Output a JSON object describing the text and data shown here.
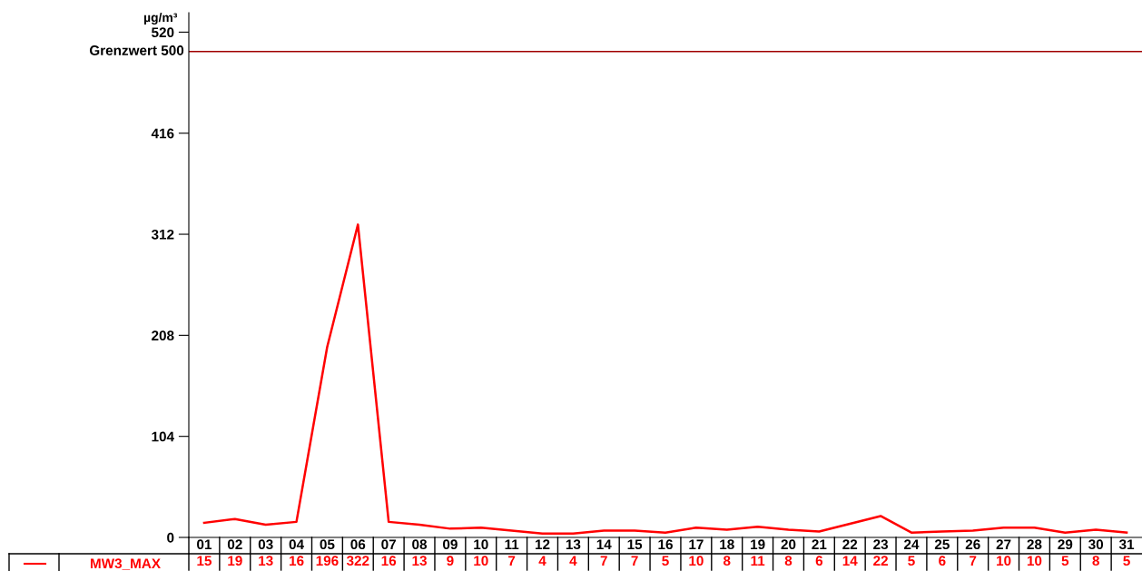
{
  "chart_data": {
    "type": "line",
    "ylabel": "µg/m³",
    "categories": [
      "01",
      "02",
      "03",
      "04",
      "05",
      "06",
      "07",
      "08",
      "09",
      "10",
      "11",
      "12",
      "13",
      "14",
      "15",
      "16",
      "17",
      "18",
      "19",
      "20",
      "21",
      "22",
      "23",
      "24",
      "25",
      "26",
      "27",
      "28",
      "29",
      "30",
      "31"
    ],
    "series": [
      {
        "name": "MW3_MAX",
        "color": "#ff0000",
        "values": [
          15,
          19,
          13,
          16,
          196,
          322,
          16,
          13,
          9,
          10,
          7,
          4,
          4,
          7,
          7,
          5,
          10,
          8,
          11,
          8,
          6,
          14,
          22,
          5,
          6,
          7,
          10,
          10,
          5,
          8,
          5
        ]
      }
    ],
    "ylim": [
      0,
      540
    ],
    "yticks": [
      0,
      104,
      208,
      312,
      416,
      520
    ],
    "ref_lines": [
      {
        "axis": "y",
        "value": 500,
        "label": "Grenzwert 500",
        "color": "#a00000"
      }
    ],
    "data_labels": true,
    "legend": "bottom left",
    "grid": false,
    "marker": "none",
    "line_style": "solid"
  }
}
